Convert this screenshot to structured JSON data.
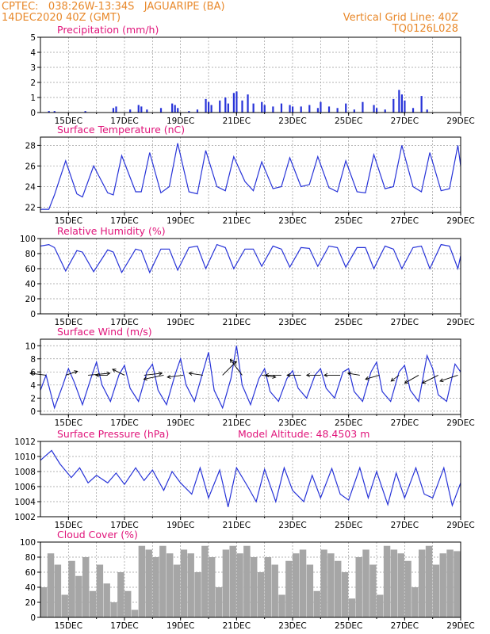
{
  "header": {
    "left_line1": "CPTEC:   038:26W-13:34S   JAGUARIPE (BA)",
    "left_line2": "14DEC2020 40Z (GMT)",
    "right_line1": "Vertical Grid Line: 40Z",
    "right_line2": "TQ0126L028"
  },
  "colors": {
    "series": "#2733d8",
    "cloud": "#a6a6a6",
    "title": "#e0147a",
    "header": "#e8882a"
  },
  "x_axis": {
    "day_range": [
      14,
      29
    ],
    "tick_days": [
      15,
      17,
      19,
      21,
      23,
      25,
      27,
      29
    ],
    "tick_labels": [
      "15DEC",
      "17DEC",
      "19DEC",
      "21DEC",
      "23DEC",
      "25DEC",
      "27DEC",
      "29DEC"
    ]
  },
  "chart_data": [
    {
      "type": "bar",
      "title": "Precipitation (mm/h)",
      "ylim": [
        0,
        5
      ],
      "yticks": [
        0,
        1,
        2,
        3,
        4,
        5
      ],
      "ytick_labels": [
        "0",
        "1",
        "2",
        "3",
        "4",
        "5"
      ],
      "x": [
        14.3,
        14.5,
        15.6,
        16.6,
        16.7,
        17.2,
        17.5,
        17.6,
        17.8,
        18.3,
        18.7,
        18.8,
        18.9,
        19.3,
        19.6,
        19.9,
        20.0,
        20.1,
        20.4,
        20.6,
        20.7,
        20.9,
        21.0,
        21.2,
        21.4,
        21.6,
        21.9,
        22.0,
        22.3,
        22.6,
        22.9,
        23.0,
        23.3,
        23.6,
        23.9,
        24.0,
        24.3,
        24.6,
        24.9,
        25.2,
        25.5,
        25.9,
        26.0,
        26.3,
        26.6,
        26.8,
        26.9,
        27.0,
        27.3,
        27.6,
        27.8
      ],
      "values": [
        0.1,
        0.1,
        0.1,
        0.3,
        0.4,
        0.2,
        0.5,
        0.4,
        0.2,
        0.3,
        0.6,
        0.5,
        0.3,
        0.1,
        0.2,
        0.9,
        0.7,
        0.5,
        0.8,
        1.0,
        0.6,
        1.3,
        1.4,
        0.8,
        1.2,
        0.6,
        0.7,
        0.5,
        0.4,
        0.6,
        0.5,
        0.4,
        0.4,
        0.5,
        0.3,
        0.7,
        0.4,
        0.3,
        0.6,
        0.2,
        0.7,
        0.5,
        0.3,
        0.2,
        0.9,
        1.5,
        1.2,
        0.8,
        0.3,
        1.1,
        0.2
      ]
    },
    {
      "type": "line",
      "title": "Surface Temperature (nC)",
      "ylim": [
        21.5,
        28.8
      ],
      "yticks": [
        22,
        24,
        26,
        28
      ],
      "ytick_labels": [
        "22",
        "24",
        "26",
        "28"
      ],
      "x": [
        14.0,
        14.3,
        14.5,
        14.9,
        15.3,
        15.5,
        15.9,
        16.4,
        16.6,
        16.9,
        17.4,
        17.6,
        17.9,
        18.3,
        18.6,
        18.9,
        19.3,
        19.6,
        19.9,
        20.3,
        20.6,
        20.9,
        21.3,
        21.6,
        21.9,
        22.3,
        22.6,
        22.9,
        23.3,
        23.6,
        23.9,
        24.3,
        24.6,
        24.9,
        25.3,
        25.6,
        25.9,
        26.3,
        26.6,
        26.9,
        27.3,
        27.6,
        27.9,
        28.3,
        28.6,
        28.9,
        29.0
      ],
      "values": [
        21.8,
        21.8,
        23.2,
        26.5,
        23.3,
        23.0,
        26.0,
        23.4,
        23.2,
        27.0,
        23.5,
        23.5,
        27.3,
        23.4,
        24.0,
        28.2,
        23.5,
        23.3,
        27.5,
        24.0,
        23.6,
        26.9,
        24.5,
        23.6,
        26.4,
        23.8,
        24.0,
        26.8,
        24.0,
        24.2,
        26.9,
        23.9,
        23.5,
        26.5,
        23.5,
        23.4,
        27.1,
        23.8,
        24.0,
        28.0,
        24.0,
        23.5,
        27.3,
        23.6,
        23.8,
        28.0,
        26.0
      ]
    },
    {
      "type": "line",
      "title": "Relative Humidity (%)",
      "ylim": [
        0,
        100
      ],
      "yticks": [
        0,
        20,
        40,
        60,
        80,
        100
      ],
      "ytick_labels": [
        "0",
        "20",
        "40",
        "60",
        "80",
        "100"
      ],
      "x": [
        14.0,
        14.3,
        14.5,
        14.9,
        15.3,
        15.5,
        15.9,
        16.4,
        16.6,
        16.9,
        17.4,
        17.6,
        17.9,
        18.3,
        18.6,
        18.9,
        19.3,
        19.6,
        19.9,
        20.3,
        20.6,
        20.9,
        21.3,
        21.6,
        21.9,
        22.3,
        22.6,
        22.9,
        23.3,
        23.6,
        23.9,
        24.3,
        24.6,
        24.9,
        25.3,
        25.6,
        25.9,
        26.3,
        26.6,
        26.9,
        27.3,
        27.6,
        27.9,
        28.3,
        28.6,
        28.9,
        29.0
      ],
      "values": [
        90,
        92,
        88,
        57,
        84,
        82,
        56,
        85,
        82,
        55,
        86,
        84,
        55,
        86,
        86,
        58,
        88,
        90,
        60,
        92,
        88,
        60,
        86,
        86,
        63,
        90,
        86,
        62,
        88,
        87,
        63,
        90,
        88,
        62,
        88,
        88,
        60,
        90,
        86,
        60,
        88,
        90,
        60,
        92,
        90,
        60,
        77
      ]
    },
    {
      "type": "line",
      "title": "Surface Wind (m/s)",
      "ylim": [
        -0.5,
        11
      ],
      "yticks": [
        0,
        2,
        4,
        6,
        8,
        10
      ],
      "ytick_labels": [
        "0",
        "2",
        "4",
        "6",
        "8",
        "10"
      ],
      "x": [
        14.0,
        14.2,
        14.5,
        14.8,
        15.0,
        15.2,
        15.5,
        15.8,
        16.0,
        16.2,
        16.5,
        16.8,
        17.0,
        17.2,
        17.5,
        17.8,
        18.0,
        18.2,
        18.5,
        18.8,
        19.0,
        19.2,
        19.5,
        19.8,
        20.0,
        20.2,
        20.5,
        20.8,
        21.0,
        21.2,
        21.5,
        21.8,
        22.0,
        22.2,
        22.5,
        22.8,
        23.0,
        23.2,
        23.5,
        23.8,
        24.0,
        24.2,
        24.5,
        24.8,
        25.0,
        25.2,
        25.5,
        25.8,
        26.0,
        26.2,
        26.5,
        26.8,
        27.0,
        27.2,
        27.5,
        27.8,
        28.0,
        28.2,
        28.5,
        28.8,
        29.0
      ],
      "values": [
        3.2,
        5.5,
        0.5,
        4.0,
        6.5,
        4.5,
        1.0,
        5.0,
        7.5,
        4.0,
        1.5,
        5.5,
        7.0,
        3.5,
        1.5,
        6.0,
        7.2,
        3.2,
        1.0,
        5.5,
        8.0,
        4.0,
        1.5,
        6.0,
        9.0,
        3.2,
        0.5,
        5.0,
        10.0,
        4.0,
        1.0,
        5.0,
        6.5,
        3.0,
        1.5,
        5.0,
        6.2,
        3.5,
        2.0,
        5.5,
        6.5,
        3.5,
        2.0,
        6.0,
        6.5,
        3.0,
        1.5,
        6.0,
        7.5,
        3.0,
        1.5,
        6.0,
        7.0,
        3.2,
        1.5,
        8.5,
        6.5,
        2.5,
        1.5,
        7.2,
        6.0
      ],
      "wind_barbs": {
        "x": [
          14.2,
          14.9,
          15.7,
          16.4,
          17.0,
          17.7,
          18.4,
          19.1,
          19.8,
          20.5,
          21.2,
          21.9,
          22.6,
          23.3,
          24.0,
          24.7,
          25.4,
          26.1,
          26.8,
          27.5,
          28.2,
          28.9
        ],
        "u": [
          -4.0,
          3.0,
          5.5,
          -3.0,
          -3.0,
          4.5,
          -5.0,
          -4.0,
          -3.5,
          3.5,
          -3.0,
          3.5,
          -4.0,
          -3.5,
          -3.5,
          -4.0,
          -3.0,
          -3.5,
          -2.0,
          -3.5,
          -4.0,
          -4.5
        ],
        "v": [
          0.5,
          1.0,
          0.5,
          0.0,
          1.5,
          0.5,
          -1.0,
          -0.5,
          0.5,
          3.5,
          4.0,
          -0.5,
          0.0,
          0.0,
          0.0,
          0.0,
          0.5,
          -1.0,
          -1.5,
          -2.0,
          -2.0,
          -1.5
        ]
      }
    },
    {
      "type": "line",
      "title": "Surface Pressure (hPa)",
      "annotation": "Model Altitude: 48.4503 m",
      "ylim": [
        1002,
        1012
      ],
      "yticks": [
        1002,
        1004,
        1006,
        1008,
        1010,
        1012
      ],
      "ytick_labels": [
        "1002",
        "1004",
        "1006",
        "1008",
        "1010",
        "1012"
      ],
      "x": [
        14.0,
        14.4,
        14.7,
        15.1,
        15.4,
        15.7,
        16.0,
        16.4,
        16.7,
        17.0,
        17.4,
        17.7,
        18.0,
        18.4,
        18.7,
        19.0,
        19.4,
        19.7,
        20.0,
        20.4,
        20.7,
        21.0,
        21.4,
        21.7,
        22.0,
        22.4,
        22.7,
        23.0,
        23.4,
        23.7,
        24.0,
        24.4,
        24.7,
        25.0,
        25.4,
        25.7,
        26.0,
        26.4,
        26.7,
        27.0,
        27.4,
        27.7,
        28.0,
        28.4,
        28.7,
        29.0
      ],
      "values": [
        1009.5,
        1010.8,
        1009.0,
        1007.2,
        1008.5,
        1006.5,
        1007.5,
        1006.5,
        1007.8,
        1006.3,
        1008.5,
        1006.8,
        1008.2,
        1005.5,
        1008.0,
        1006.5,
        1005.0,
        1008.5,
        1004.5,
        1008.2,
        1003.3,
        1008.5,
        1006.0,
        1004.0,
        1008.3,
        1004.0,
        1008.5,
        1005.5,
        1004.0,
        1007.5,
        1004.5,
        1008.4,
        1005.0,
        1004.2,
        1008.5,
        1004.5,
        1008.0,
        1003.6,
        1007.8,
        1004.5,
        1008.5,
        1005.0,
        1004.5,
        1008.5,
        1003.5,
        1006.5
      ]
    },
    {
      "type": "bar",
      "title": "Cloud Cover (%)",
      "ylim": [
        0,
        100
      ],
      "yticks": [
        0,
        20,
        40,
        60,
        80,
        100
      ],
      "ytick_labels": [
        "0",
        "20",
        "40",
        "60",
        "80",
        "100"
      ],
      "x": [
        14.0,
        14.25,
        14.5,
        14.75,
        15.0,
        15.25,
        15.5,
        15.75,
        16.0,
        16.25,
        16.5,
        16.75,
        17.0,
        17.25,
        17.5,
        17.75,
        18.0,
        18.25,
        18.5,
        18.75,
        19.0,
        19.25,
        19.5,
        19.75,
        20.0,
        20.25,
        20.5,
        20.75,
        21.0,
        21.25,
        21.5,
        21.75,
        22.0,
        22.25,
        22.5,
        22.75,
        23.0,
        23.25,
        23.5,
        23.75,
        24.0,
        24.25,
        24.5,
        24.75,
        25.0,
        25.25,
        25.5,
        25.75,
        26.0,
        26.25,
        26.5,
        26.75,
        27.0,
        27.25,
        27.5,
        27.75,
        28.0,
        28.25,
        28.5,
        28.75
      ],
      "values": [
        40,
        85,
        70,
        30,
        75,
        55,
        80,
        35,
        70,
        45,
        20,
        60,
        35,
        10,
        95,
        90,
        80,
        95,
        85,
        70,
        90,
        85,
        60,
        95,
        80,
        40,
        90,
        95,
        85,
        95,
        80,
        60,
        80,
        70,
        30,
        75,
        85,
        90,
        70,
        35,
        90,
        85,
        75,
        60,
        25,
        80,
        90,
        70,
        30,
        95,
        90,
        85,
        75,
        40,
        90,
        95,
        70,
        85,
        90,
        88
      ]
    }
  ]
}
